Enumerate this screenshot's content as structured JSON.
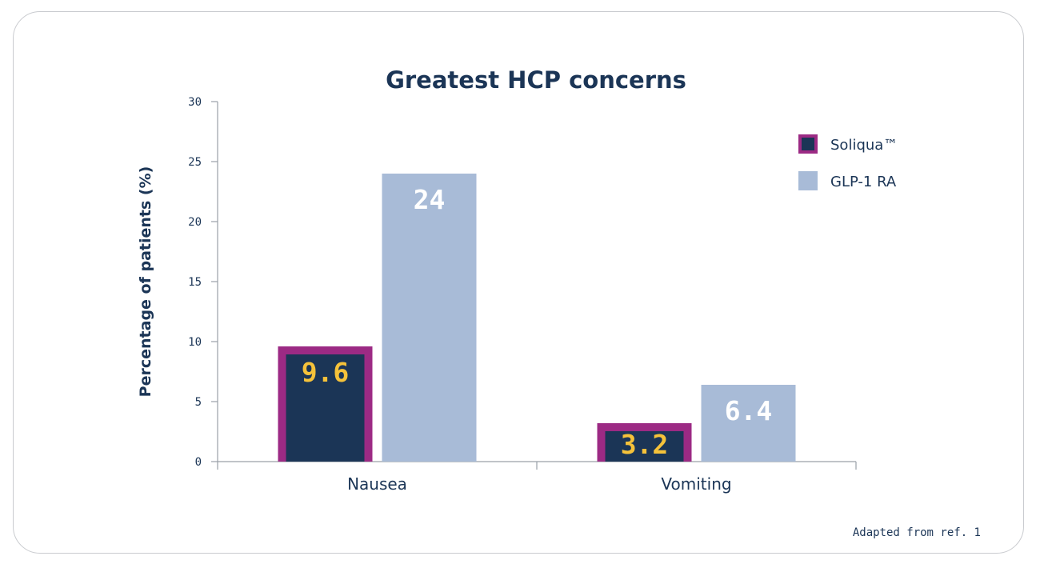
{
  "chart_data": {
    "type": "bar",
    "title": "Greatest HCP concerns",
    "ylabel": "Percentage of patients (%)",
    "xlabel": "",
    "categories": [
      "Nausea",
      "Vomiting"
    ],
    "series": [
      {
        "name": "Soliqua™",
        "values": [
          9.6,
          3.2
        ],
        "data_labels": [
          "9.6",
          "3.2"
        ],
        "fill": "#1b3556",
        "stroke": "#9c2a84",
        "label_color": "#f5c23a"
      },
      {
        "name": "GLP-1 RA",
        "values": [
          24,
          6.4
        ],
        "data_labels": [
          "24",
          "6.4"
        ],
        "fill": "#a8bbd7",
        "stroke": "none",
        "label_color": "#ffffff"
      }
    ],
    "ylim": [
      0,
      30
    ],
    "yticks": [
      0,
      5,
      10,
      15,
      20,
      25,
      30
    ],
    "grid": false,
    "legend_position": "top-right",
    "source_note": "Adapted from ref. 1"
  }
}
